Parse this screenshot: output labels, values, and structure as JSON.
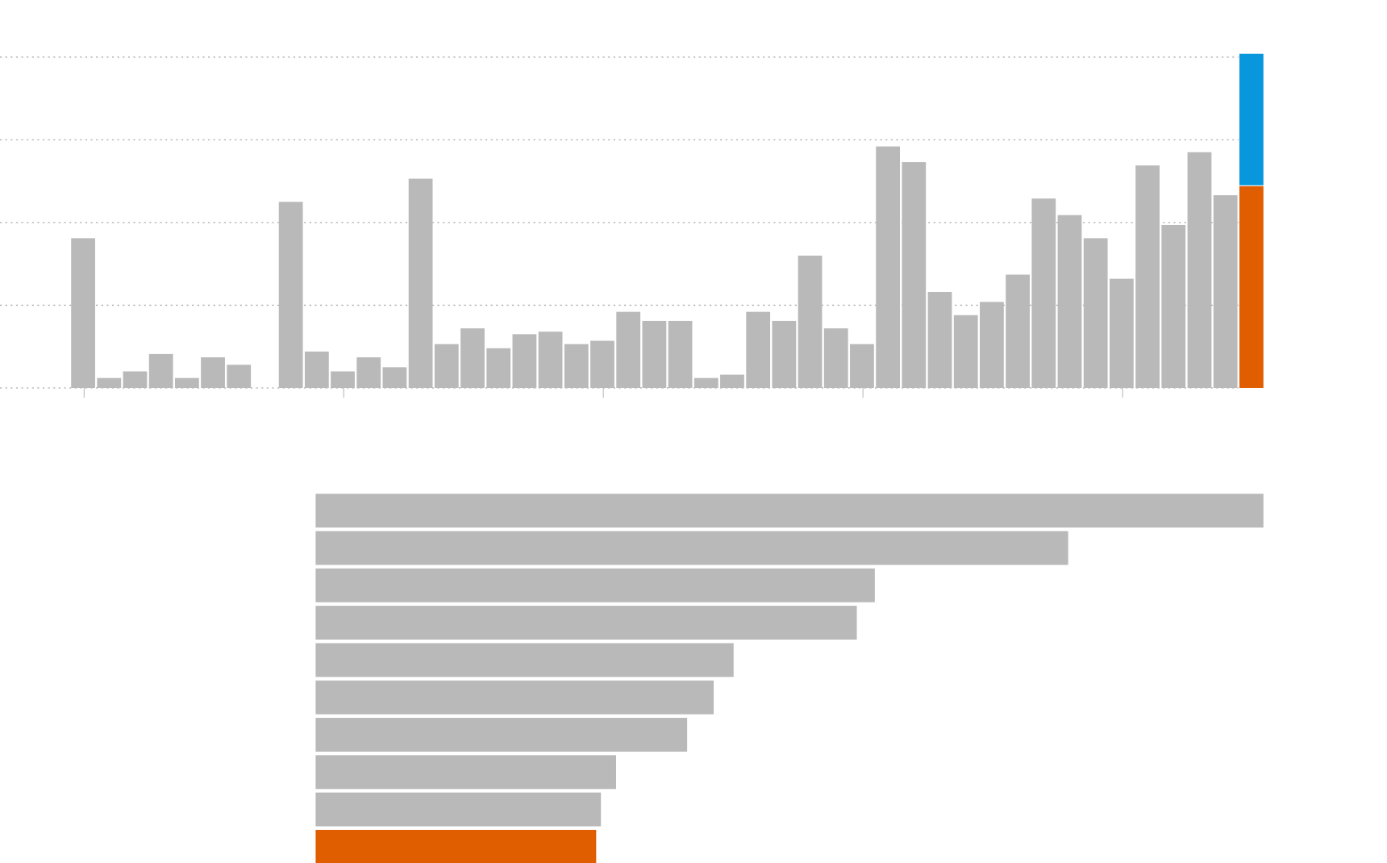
{
  "chart_data": [
    {
      "type": "stacked-bar",
      "categories": [
        null,
        null,
        null,
        null,
        null,
        null,
        null,
        null,
        null,
        null,
        null,
        null,
        null,
        null,
        null,
        null,
        null,
        null,
        null,
        null,
        null,
        null,
        null,
        null,
        null,
        null,
        null,
        null,
        null,
        null,
        null,
        null,
        null,
        null,
        null,
        null,
        null,
        null,
        null,
        null,
        null,
        null,
        null,
        null,
        null,
        null
      ],
      "series": [
        {
          "color": "#b9b9b9",
          "values": [
            1.81,
            0.12,
            0.2,
            0.41,
            0.12,
            0.37,
            0.28,
            null,
            2.25,
            0.44,
            0.2,
            0.37,
            0.25,
            2.53,
            0.53,
            0.72,
            0.48,
            0.65,
            0.68,
            0.53,
            0.57,
            0.92,
            0.81,
            0.81,
            0.12,
            0.16,
            0.92,
            0.81,
            1.6,
            0.72,
            0.53,
            2.92,
            2.73,
            1.16,
            0.88,
            1.04,
            1.37,
            2.29,
            2.09,
            1.81,
            1.32,
            2.69,
            1.97,
            2.85,
            2.33,
            null
          ]
        },
        {
          "color": "#e05d00",
          "values": [
            null,
            null,
            null,
            null,
            null,
            null,
            null,
            null,
            null,
            null,
            null,
            null,
            null,
            null,
            null,
            null,
            null,
            null,
            null,
            null,
            null,
            null,
            null,
            null,
            null,
            null,
            null,
            null,
            null,
            null,
            null,
            null,
            null,
            null,
            null,
            null,
            null,
            null,
            null,
            null,
            null,
            null,
            null,
            null,
            null,
            2.44
          ]
        },
        {
          "color": "#0896dc",
          "values": [
            null,
            null,
            null,
            null,
            null,
            null,
            null,
            null,
            null,
            null,
            null,
            null,
            null,
            null,
            null,
            null,
            null,
            null,
            null,
            null,
            null,
            null,
            null,
            null,
            null,
            null,
            null,
            null,
            null,
            null,
            null,
            null,
            null,
            null,
            null,
            null,
            null,
            null,
            null,
            null,
            null,
            null,
            null,
            null,
            null,
            1.6
          ]
        }
      ],
      "ylim": [
        0,
        4
      ],
      "yticks": [
        0,
        1,
        2,
        3,
        4
      ],
      "grid": true,
      "xticks": [
        0,
        10,
        20,
        30,
        40
      ]
    },
    {
      "type": "hbar",
      "categories": [
        null,
        null,
        null,
        null,
        null,
        null,
        null,
        null,
        null,
        null
      ],
      "values": [
        100,
        79.4,
        59.0,
        57.1,
        44.1,
        42.0,
        39.2,
        31.7,
        30.1,
        29.6
      ],
      "colors": [
        "#b9b9b9",
        "#b9b9b9",
        "#b9b9b9",
        "#b9b9b9",
        "#b9b9b9",
        "#b9b9b9",
        "#b9b9b9",
        "#b9b9b9",
        "#b9b9b9",
        "#e05d00"
      ],
      "xlim": [
        0,
        100
      ]
    }
  ]
}
